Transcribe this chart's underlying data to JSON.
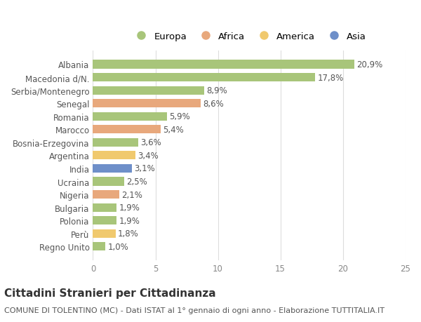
{
  "countries": [
    "Albania",
    "Macedonia d/N.",
    "Serbia/Montenegro",
    "Senegal",
    "Romania",
    "Marocco",
    "Bosnia-Erzegovina",
    "Argentina",
    "India",
    "Ucraina",
    "Nigeria",
    "Bulgaria",
    "Polonia",
    "Perù",
    "Regno Unito"
  ],
  "values": [
    20.9,
    17.8,
    8.9,
    8.6,
    5.9,
    5.4,
    3.6,
    3.4,
    3.1,
    2.5,
    2.1,
    1.9,
    1.9,
    1.8,
    1.0
  ],
  "labels": [
    "20,9%",
    "17,8%",
    "8,9%",
    "8,6%",
    "5,9%",
    "5,4%",
    "3,6%",
    "3,4%",
    "3,1%",
    "2,5%",
    "2,1%",
    "1,9%",
    "1,9%",
    "1,8%",
    "1,0%"
  ],
  "categories": [
    "Europa",
    "Europa",
    "Europa",
    "Africa",
    "Europa",
    "Africa",
    "Europa",
    "America",
    "Asia",
    "Europa",
    "Africa",
    "Europa",
    "Europa",
    "America",
    "Europa"
  ],
  "colors": {
    "Europa": "#a8c57a",
    "Africa": "#e8a87c",
    "America": "#f0c96e",
    "Asia": "#6e8fc9"
  },
  "legend_order": [
    "Europa",
    "Africa",
    "America",
    "Asia"
  ],
  "title": "Cittadini Stranieri per Cittadinanza",
  "subtitle": "COMUNE DI TOLENTINO (MC) - Dati ISTAT al 1° gennaio di ogni anno - Elaborazione TUTTITALIA.IT",
  "xlim": [
    0,
    25
  ],
  "xticks": [
    0,
    5,
    10,
    15,
    20,
    25
  ],
  "background_color": "#ffffff",
  "bar_height": 0.65,
  "grid_color": "#dddddd",
  "label_fontsize": 8.5,
  "tick_fontsize": 8.5,
  "title_fontsize": 11,
  "subtitle_fontsize": 8
}
